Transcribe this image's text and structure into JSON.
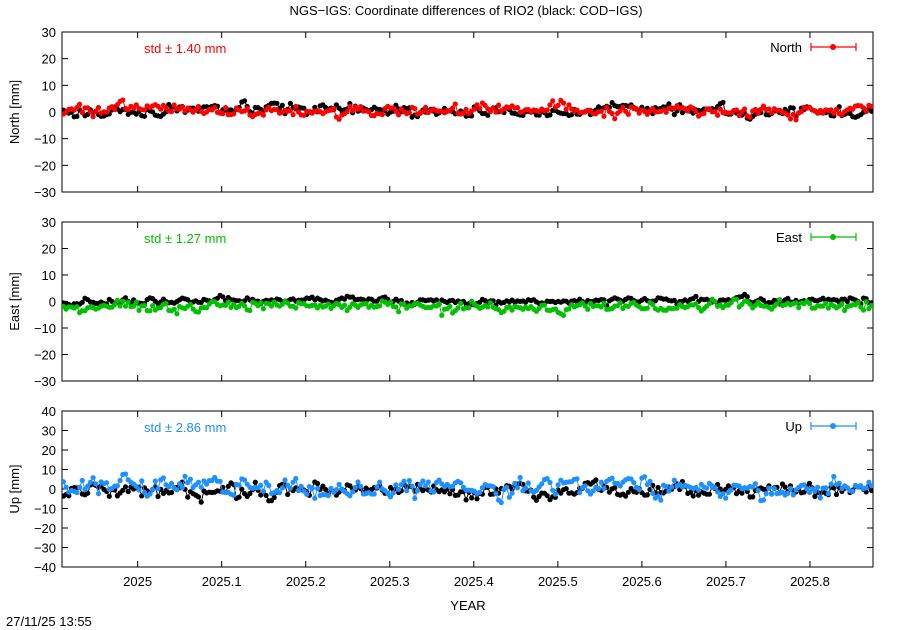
{
  "page": {
    "title": "NGS−IGS: Coordinate differences of RIO2 (black: COD−IGS)",
    "xlabel": "YEAR",
    "timestamp": "27/11/25 13:55"
  },
  "chart_data": [
    {
      "type": "scatter",
      "key": "north",
      "ylabel": "North [mm]",
      "ylim": [
        -30,
        30
      ],
      "yticks": [
        "30",
        "20",
        "10",
        "0",
        "−10",
        "−20",
        "−30"
      ],
      "ytick_values": [
        30,
        20,
        10,
        0,
        -10,
        -20,
        -30
      ],
      "legend": "North",
      "legend_placement": "top-right",
      "std_text": "std ± 1.40 mm",
      "color": "#ff0000",
      "ref_color": "#000000",
      "std": 1.4,
      "ref_std": 1.3,
      "bias": 0.6,
      "ref_bias": 0.4,
      "xlim": [
        2024.91,
        2025.875
      ],
      "grid": false
    },
    {
      "type": "scatter",
      "key": "east",
      "ylabel": "East [mm]",
      "ylim": [
        -30,
        30
      ],
      "yticks": [
        "30",
        "20",
        "10",
        "0",
        "−10",
        "−20",
        "−30"
      ],
      "ytick_values": [
        30,
        20,
        10,
        0,
        -10,
        -20,
        -30
      ],
      "legend": "East",
      "legend_placement": "top-right",
      "std_text": "std ± 1.27 mm",
      "color": "#00c000",
      "ref_color": "#000000",
      "std": 1.27,
      "ref_std": 0.8,
      "bias": -1.8,
      "ref_bias": 0.3,
      "xlim": [
        2024.91,
        2025.875
      ],
      "grid": false
    },
    {
      "type": "scatter",
      "key": "up",
      "ylabel": "Up [mm]",
      "ylim": [
        -40,
        40
      ],
      "yticks": [
        "40",
        "30",
        "20",
        "10",
        "0",
        "−10",
        "−20",
        "−30",
        "−40"
      ],
      "ytick_values": [
        40,
        30,
        20,
        10,
        0,
        -10,
        -20,
        -30,
        -40
      ],
      "legend": "Up",
      "legend_placement": "top-right",
      "std_text": "std ± 2.86 mm",
      "color": "#1e90ff",
      "ref_color": "#000000",
      "std": 2.86,
      "ref_std": 2.4,
      "bias": 1.0,
      "ref_bias": -0.5,
      "xlim": [
        2024.91,
        2025.875
      ],
      "grid": false
    }
  ],
  "xticks": [
    "2025",
    "2025.1",
    "2025.2",
    "2025.3",
    "2025.4",
    "2025.5",
    "2025.6",
    "2025.7",
    "2025.8"
  ],
  "xtick_values": [
    2025.0,
    2025.1,
    2025.2,
    2025.3,
    2025.4,
    2025.5,
    2025.6,
    2025.7,
    2025.8
  ]
}
